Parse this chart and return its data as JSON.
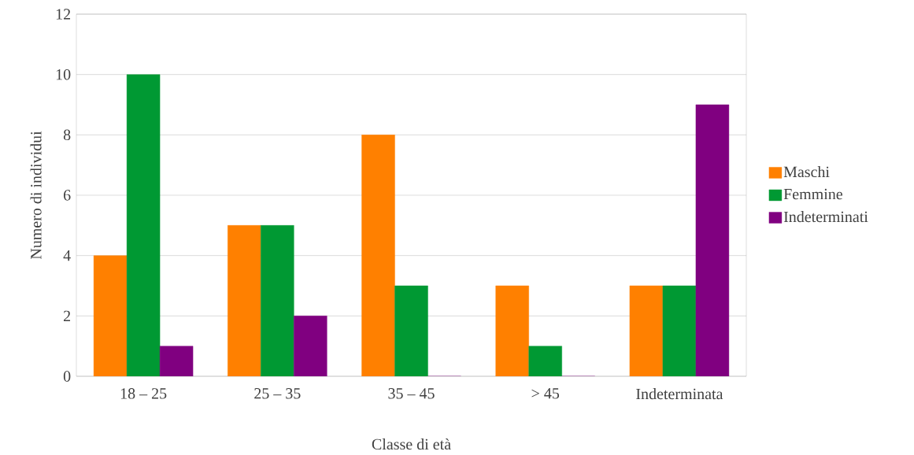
{
  "chart_data": {
    "type": "bar",
    "xlabel": "Classe di età",
    "ylabel": "Numero di individui",
    "categories": [
      "18 – 25",
      "25 – 35",
      "35 – 45",
      "> 45",
      "Indeterminata"
    ],
    "series": [
      {
        "name": "Maschi",
        "color": "#ff8000",
        "values": [
          4,
          5,
          8,
          3,
          3
        ]
      },
      {
        "name": "Femmine",
        "color": "#009933",
        "values": [
          10,
          5,
          3,
          1,
          3
        ]
      },
      {
        "name": "Indeterminati",
        "color": "#800080",
        "values": [
          1,
          2,
          0,
          0,
          9
        ]
      }
    ],
    "ylim": [
      0,
      12
    ],
    "yticks": [
      0,
      2,
      4,
      6,
      8,
      10,
      12
    ],
    "grid": "y",
    "legend": "right"
  }
}
